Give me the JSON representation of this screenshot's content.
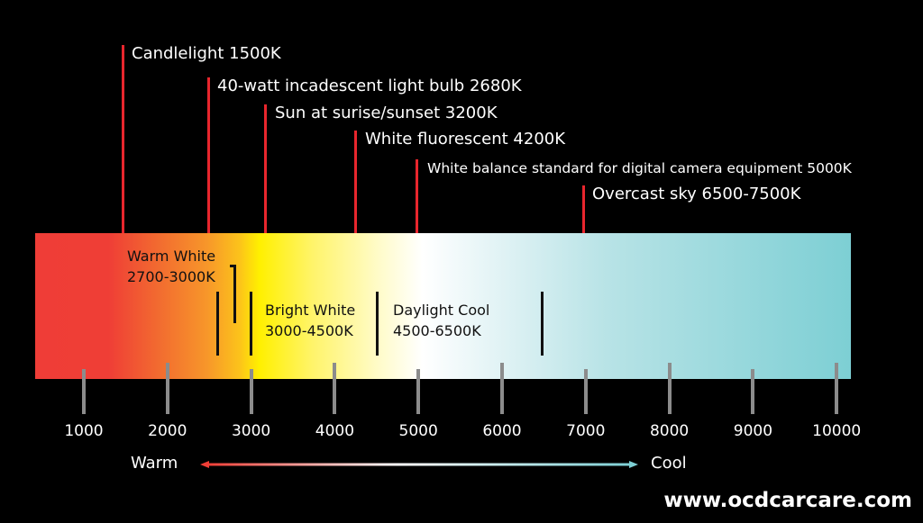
{
  "markers": [
    {
      "label": "Candlelight 1500K",
      "kelvin": 1500
    },
    {
      "label": "40-watt incadescent light bulb 2680K",
      "kelvin": 2680
    },
    {
      "label": "Sun at surise/sunset 3200K",
      "kelvin": 3200
    },
    {
      "label": "White fluorescent 4200K",
      "kelvin": 4200
    },
    {
      "label": "White balance standard for digital camera equipment 5000K",
      "kelvin": 5000
    },
    {
      "label": "Overcast sky 6500-7500K",
      "kelvin": 7000
    }
  ],
  "zones": [
    {
      "name": "Warm White",
      "range": "2700-3000K"
    },
    {
      "name": "Bright White",
      "range": "3000-4500K"
    },
    {
      "name": "Daylight Cool",
      "range": "4500-6500K"
    }
  ],
  "axis": {
    "ticks": [
      "1000",
      "2000",
      "3000",
      "4000",
      "5000",
      "6000",
      "7000",
      "8000",
      "9000",
      "10000"
    ]
  },
  "scale": {
    "warm_label": "Warm",
    "cool_label": "Cool"
  },
  "colors": {
    "marker": "#e8262d",
    "warm": "#ef3e36",
    "yellow": "#fff000",
    "cool": "#7dcfd4"
  },
  "footer": {
    "website": "www.ocdcarcare.com"
  }
}
